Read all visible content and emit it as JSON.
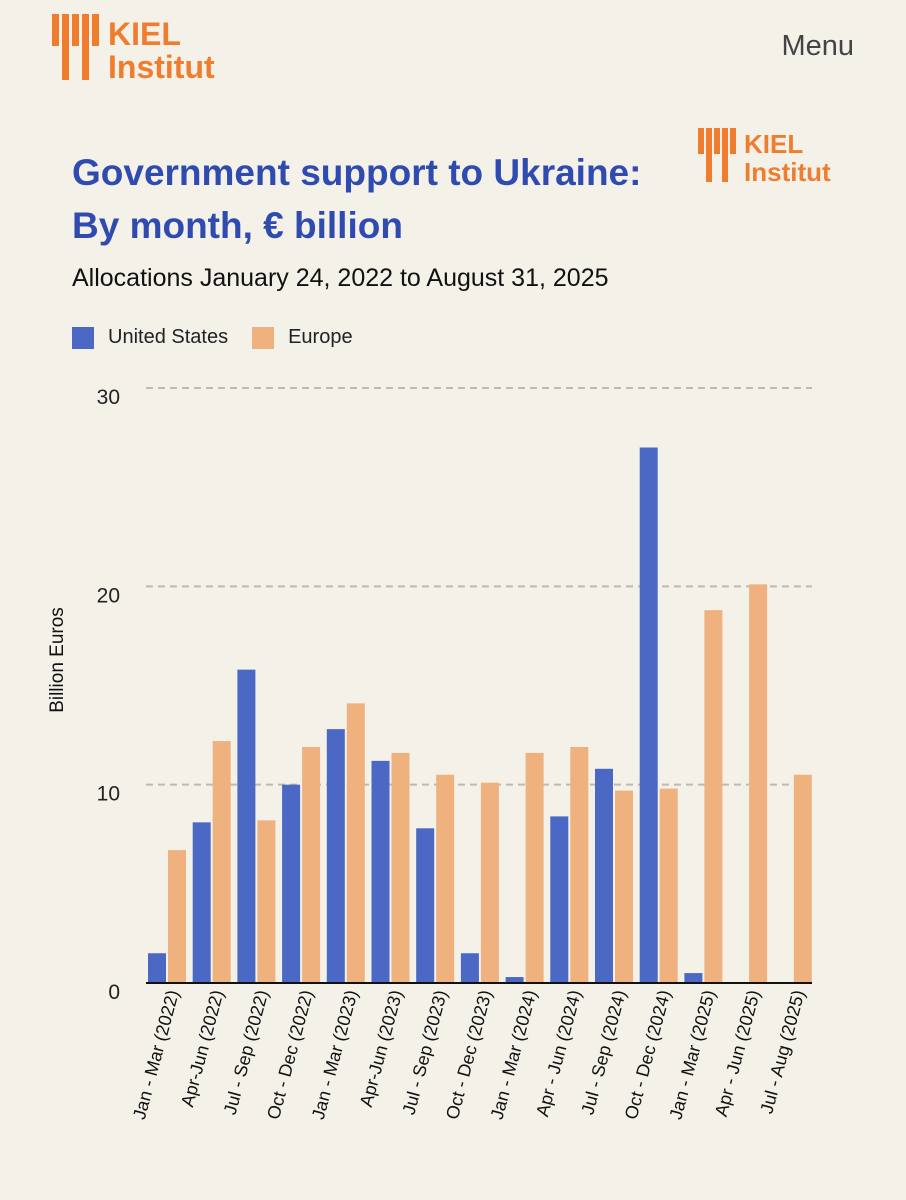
{
  "header": {
    "logo_text_top": "KIEL",
    "logo_text_bottom": "Institut",
    "menu_label": "Menu"
  },
  "chart_logo": {
    "text_top": "KIEL",
    "text_bottom": "Institut"
  },
  "colors": {
    "us": "#4a68c4",
    "europe": "#efb27f",
    "title": "#2f4bb0",
    "brand": "#f07c2e"
  },
  "chart_data": {
    "type": "bar",
    "title": "Government support to Ukraine: By month, € billion",
    "subtitle": "Allocations January 24, 2022 to August 31, 2025",
    "ylabel": "Billion Euros",
    "xlabel": "",
    "ylim": [
      0,
      30
    ],
    "yticks": [
      0,
      10,
      20,
      30
    ],
    "legend": "top-left",
    "categories": [
      "Jan - Mar (2022)",
      "Apr-Jun (2022)",
      "Jul - Sep (2022)",
      "Oct - Dec (2022)",
      "Jan - Mar (2023)",
      "Apr-Jun (2023)",
      "Jul - Sep (2023)",
      "Oct - Dec (2023)",
      "Jan - Mar (2024)",
      "Apr - Jun (2024)",
      "Jul - Sep (2024)",
      "Oct - Dec (2024)",
      "Jan - Mar (2025)",
      "Apr - Jun (2025)",
      "Jul - Aug (2025)"
    ],
    "series": [
      {
        "name": "United States",
        "values": [
          1.5,
          8.1,
          15.8,
          10.0,
          12.8,
          11.2,
          7.8,
          1.5,
          0.3,
          8.4,
          10.8,
          27.0,
          0.5,
          0,
          0
        ]
      },
      {
        "name": "Europe",
        "values": [
          6.7,
          12.2,
          8.2,
          11.9,
          14.1,
          11.6,
          10.5,
          10.1,
          11.6,
          11.9,
          9.7,
          9.8,
          18.8,
          20.1,
          10.5
        ]
      }
    ]
  }
}
